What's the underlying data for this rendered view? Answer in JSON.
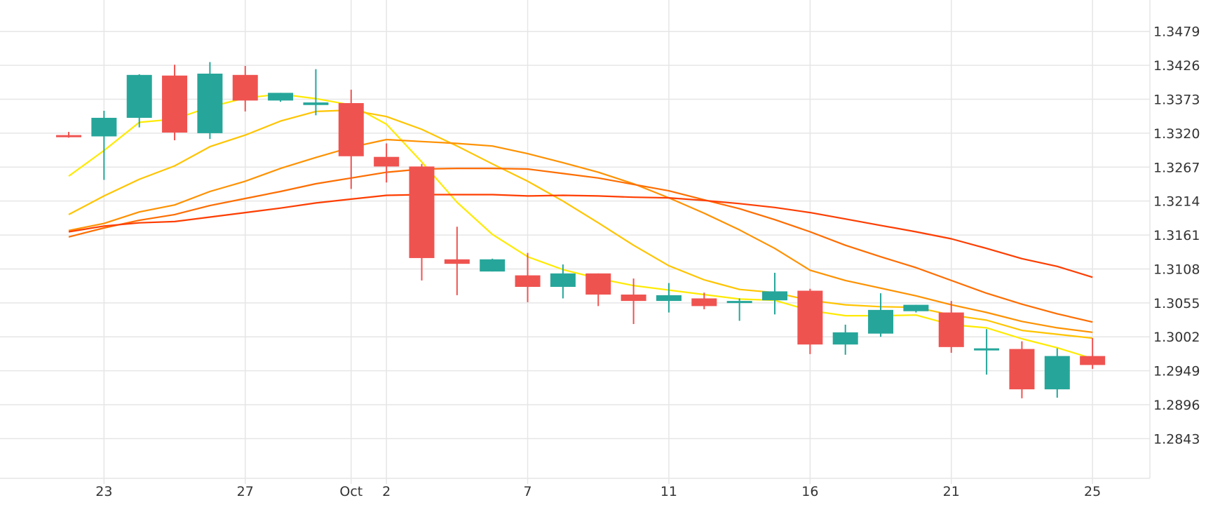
{
  "chart_data": {
    "type": "candlestick",
    "y_ticks": [
      "1.3479",
      "1.3426",
      "1.3373",
      "1.3320",
      "1.3267",
      "1.3214",
      "1.3161",
      "1.3108",
      "1.3055",
      "1.3002",
      "1.2949",
      "1.2896",
      "1.2843"
    ],
    "ylim": [
      1.2781,
      1.3528
    ],
    "x_ticks": [
      {
        "label": "23",
        "index": 1
      },
      {
        "label": "27",
        "index": 5
      },
      {
        "label": "Oct",
        "index": 8
      },
      {
        "label": "2",
        "index": 9
      },
      {
        "label": "7",
        "index": 13
      },
      {
        "label": "11",
        "index": 17
      },
      {
        "label": "16",
        "index": 21
      },
      {
        "label": "21",
        "index": 25
      },
      {
        "label": "25",
        "index": 29
      }
    ],
    "candles": [
      {
        "o": 1.3317,
        "h": 1.3322,
        "l": 1.3313,
        "c": 1.3314
      },
      {
        "o": 1.3315,
        "h": 1.3355,
        "l": 1.3247,
        "c": 1.3344
      },
      {
        "o": 1.3344,
        "h": 1.3412,
        "l": 1.3329,
        "c": 1.3411
      },
      {
        "o": 1.341,
        "h": 1.3427,
        "l": 1.3309,
        "c": 1.3321
      },
      {
        "o": 1.332,
        "h": 1.3431,
        "l": 1.3311,
        "c": 1.3413
      },
      {
        "o": 1.3411,
        "h": 1.3425,
        "l": 1.3354,
        "c": 1.3371
      },
      {
        "o": 1.3371,
        "h": 1.3383,
        "l": 1.3369,
        "c": 1.3383
      },
      {
        "o": 1.3364,
        "h": 1.342,
        "l": 1.3348,
        "c": 1.3368
      },
      {
        "o": 1.3367,
        "h": 1.3388,
        "l": 1.3233,
        "c": 1.3284
      },
      {
        "o": 1.3283,
        "h": 1.3304,
        "l": 1.3243,
        "c": 1.3268
      },
      {
        "o": 1.3268,
        "h": 1.3272,
        "l": 1.309,
        "c": 1.3125
      },
      {
        "o": 1.3123,
        "h": 1.3174,
        "l": 1.3067,
        "c": 1.3116
      },
      {
        "o": 1.3104,
        "h": 1.3124,
        "l": 1.3104,
        "c": 1.3123
      },
      {
        "o": 1.3098,
        "h": 1.3133,
        "l": 1.3056,
        "c": 1.308
      },
      {
        "o": 1.308,
        "h": 1.3115,
        "l": 1.3062,
        "c": 1.3101
      },
      {
        "o": 1.3101,
        "h": 1.3101,
        "l": 1.305,
        "c": 1.3068
      },
      {
        "o": 1.3068,
        "h": 1.3093,
        "l": 1.3022,
        "c": 1.3058
      },
      {
        "o": 1.3058,
        "h": 1.3086,
        "l": 1.304,
        "c": 1.3067
      },
      {
        "o": 1.3062,
        "h": 1.3071,
        "l": 1.3045,
        "c": 1.305
      },
      {
        "o": 1.3058,
        "h": 1.3062,
        "l": 1.3027,
        "c": 1.3058
      },
      {
        "o": 1.3059,
        "h": 1.3102,
        "l": 1.3037,
        "c": 1.3073
      },
      {
        "o": 1.3074,
        "h": 1.3077,
        "l": 1.2975,
        "c": 1.299
      },
      {
        "o": 1.299,
        "h": 1.3021,
        "l": 1.2974,
        "c": 1.3009
      },
      {
        "o": 1.3007,
        "h": 1.307,
        "l": 1.3002,
        "c": 1.3044
      },
      {
        "o": 1.3042,
        "h": 1.3052,
        "l": 1.304,
        "c": 1.3052
      },
      {
        "o": 1.304,
        "h": 1.3058,
        "l": 1.2977,
        "c": 1.2986
      },
      {
        "o": 1.2984,
        "h": 1.3014,
        "l": 1.2943,
        "c": 1.2984
      },
      {
        "o": 1.2983,
        "h": 1.2995,
        "l": 1.2906,
        "c": 1.292
      },
      {
        "o": 1.292,
        "h": 1.2984,
        "l": 1.2907,
        "c": 1.2972
      },
      {
        "o": 1.2972,
        "h": 1.3,
        "l": 1.2952,
        "c": 1.2958
      }
    ],
    "moving_averages": [
      {
        "color": "#ffea00",
        "values": [
          {
            "i": 0,
            "v": 1.3253
          },
          {
            "i": 1,
            "v": 1.3293
          },
          {
            "i": 2,
            "v": 1.3337
          },
          {
            "i": 3,
            "v": 1.3342
          },
          {
            "i": 4,
            "v": 1.3361
          },
          {
            "i": 5,
            "v": 1.3375
          },
          {
            "i": 6,
            "v": 1.3381
          },
          {
            "i": 7,
            "v": 1.3374
          },
          {
            "i": 8,
            "v": 1.3364
          },
          {
            "i": 9,
            "v": 1.3334
          },
          {
            "i": 10,
            "v": 1.3275
          },
          {
            "i": 11,
            "v": 1.3212
          },
          {
            "i": 12,
            "v": 1.3162
          },
          {
            "i": 13,
            "v": 1.3127
          },
          {
            "i": 14,
            "v": 1.3107
          },
          {
            "i": 15,
            "v": 1.3093
          },
          {
            "i": 16,
            "v": 1.3082
          },
          {
            "i": 17,
            "v": 1.3075
          },
          {
            "i": 18,
            "v": 1.3068
          },
          {
            "i": 19,
            "v": 1.3061
          },
          {
            "i": 20,
            "v": 1.3059
          },
          {
            "i": 21,
            "v": 1.3043
          },
          {
            "i": 22,
            "v": 1.3035
          },
          {
            "i": 23,
            "v": 1.3035
          },
          {
            "i": 24,
            "v": 1.3036
          },
          {
            "i": 25,
            "v": 1.3021
          },
          {
            "i": 26,
            "v": 1.3016
          },
          {
            "i": 27,
            "v": 1.2999
          },
          {
            "i": 28,
            "v": 1.2985
          },
          {
            "i": 29,
            "v": 1.2968
          }
        ]
      },
      {
        "color": "#ffc400",
        "values": [
          {
            "i": 0,
            "v": 1.3193
          },
          {
            "i": 1,
            "v": 1.3222
          },
          {
            "i": 2,
            "v": 1.3248
          },
          {
            "i": 3,
            "v": 1.3269
          },
          {
            "i": 4,
            "v": 1.3299
          },
          {
            "i": 5,
            "v": 1.3317
          },
          {
            "i": 6,
            "v": 1.3339
          },
          {
            "i": 7,
            "v": 1.3354
          },
          {
            "i": 8,
            "v": 1.3356
          },
          {
            "i": 9,
            "v": 1.3346
          },
          {
            "i": 10,
            "v": 1.3326
          },
          {
            "i": 11,
            "v": 1.33
          },
          {
            "i": 12,
            "v": 1.3272
          },
          {
            "i": 13,
            "v": 1.3245
          },
          {
            "i": 14,
            "v": 1.3214
          },
          {
            "i": 15,
            "v": 1.318
          },
          {
            "i": 16,
            "v": 1.3145
          },
          {
            "i": 17,
            "v": 1.3113
          },
          {
            "i": 18,
            "v": 1.3091
          },
          {
            "i": 19,
            "v": 1.3076
          },
          {
            "i": 20,
            "v": 1.3071
          },
          {
            "i": 21,
            "v": 1.3059
          },
          {
            "i": 22,
            "v": 1.3052
          },
          {
            "i": 23,
            "v": 1.3049
          },
          {
            "i": 24,
            "v": 1.3048
          },
          {
            "i": 25,
            "v": 1.3036
          },
          {
            "i": 26,
            "v": 1.3028
          },
          {
            "i": 27,
            "v": 1.3012
          },
          {
            "i": 28,
            "v": 1.3006
          },
          {
            "i": 29,
            "v": 1.3
          }
        ]
      },
      {
        "color": "#ff9100",
        "values": [
          {
            "i": 0,
            "v": 1.3168
          },
          {
            "i": 1,
            "v": 1.3179
          },
          {
            "i": 2,
            "v": 1.3197
          },
          {
            "i": 3,
            "v": 1.3208
          },
          {
            "i": 4,
            "v": 1.3229
          },
          {
            "i": 5,
            "v": 1.3245
          },
          {
            "i": 6,
            "v": 1.3265
          },
          {
            "i": 7,
            "v": 1.3282
          },
          {
            "i": 8,
            "v": 1.3298
          },
          {
            "i": 9,
            "v": 1.331
          },
          {
            "i": 10,
            "v": 1.3307
          },
          {
            "i": 11,
            "v": 1.3304
          },
          {
            "i": 12,
            "v": 1.33
          },
          {
            "i": 13,
            "v": 1.3288
          },
          {
            "i": 14,
            "v": 1.3274
          },
          {
            "i": 15,
            "v": 1.3259
          },
          {
            "i": 16,
            "v": 1.3241
          },
          {
            "i": 17,
            "v": 1.3219
          },
          {
            "i": 18,
            "v": 1.3195
          },
          {
            "i": 19,
            "v": 1.3169
          },
          {
            "i": 20,
            "v": 1.314
          },
          {
            "i": 21,
            "v": 1.3106
          },
          {
            "i": 22,
            "v": 1.309
          },
          {
            "i": 23,
            "v": 1.3078
          },
          {
            "i": 24,
            "v": 1.3066
          },
          {
            "i": 25,
            "v": 1.3052
          },
          {
            "i": 26,
            "v": 1.304
          },
          {
            "i": 27,
            "v": 1.3026
          },
          {
            "i": 28,
            "v": 1.3016
          },
          {
            "i": 29,
            "v": 1.3009
          }
        ]
      },
      {
        "color": "#ff6d00",
        "values": [
          {
            "i": 0,
            "v": 1.3158
          },
          {
            "i": 1,
            "v": 1.3172
          },
          {
            "i": 2,
            "v": 1.3184
          },
          {
            "i": 3,
            "v": 1.3193
          },
          {
            "i": 4,
            "v": 1.3207
          },
          {
            "i": 5,
            "v": 1.3218
          },
          {
            "i": 6,
            "v": 1.3229
          },
          {
            "i": 7,
            "v": 1.3241
          },
          {
            "i": 8,
            "v": 1.325
          },
          {
            "i": 9,
            "v": 1.3259
          },
          {
            "i": 10,
            "v": 1.3264
          },
          {
            "i": 11,
            "v": 1.3265
          },
          {
            "i": 12,
            "v": 1.3265
          },
          {
            "i": 13,
            "v": 1.3264
          },
          {
            "i": 14,
            "v": 1.3257
          },
          {
            "i": 15,
            "v": 1.325
          },
          {
            "i": 16,
            "v": 1.324
          },
          {
            "i": 17,
            "v": 1.323
          },
          {
            "i": 18,
            "v": 1.3216
          },
          {
            "i": 19,
            "v": 1.3202
          },
          {
            "i": 20,
            "v": 1.3185
          },
          {
            "i": 21,
            "v": 1.3166
          },
          {
            "i": 22,
            "v": 1.3145
          },
          {
            "i": 23,
            "v": 1.3127
          },
          {
            "i": 24,
            "v": 1.311
          },
          {
            "i": 25,
            "v": 1.309
          },
          {
            "i": 26,
            "v": 1.307
          },
          {
            "i": 27,
            "v": 1.3053
          },
          {
            "i": 28,
            "v": 1.3038
          },
          {
            "i": 29,
            "v": 1.3025
          }
        ]
      },
      {
        "color": "#ff3d00",
        "values": [
          {
            "i": 0,
            "v": 1.3166
          },
          {
            "i": 1,
            "v": 1.3175
          },
          {
            "i": 2,
            "v": 1.318
          },
          {
            "i": 3,
            "v": 1.3182
          },
          {
            "i": 4,
            "v": 1.3189
          },
          {
            "i": 5,
            "v": 1.3196
          },
          {
            "i": 6,
            "v": 1.3203
          },
          {
            "i": 7,
            "v": 1.3211
          },
          {
            "i": 8,
            "v": 1.3217
          },
          {
            "i": 9,
            "v": 1.3223
          },
          {
            "i": 10,
            "v": 1.3224
          },
          {
            "i": 11,
            "v": 1.3224
          },
          {
            "i": 12,
            "v": 1.3224
          },
          {
            "i": 13,
            "v": 1.3222
          },
          {
            "i": 14,
            "v": 1.3223
          },
          {
            "i": 15,
            "v": 1.3222
          },
          {
            "i": 16,
            "v": 1.322
          },
          {
            "i": 17,
            "v": 1.3219
          },
          {
            "i": 18,
            "v": 1.3215
          },
          {
            "i": 19,
            "v": 1.321
          },
          {
            "i": 20,
            "v": 1.3204
          },
          {
            "i": 21,
            "v": 1.3196
          },
          {
            "i": 22,
            "v": 1.3186
          },
          {
            "i": 23,
            "v": 1.3176
          },
          {
            "i": 24,
            "v": 1.3166
          },
          {
            "i": 25,
            "v": 1.3155
          },
          {
            "i": 26,
            "v": 1.314
          },
          {
            "i": 27,
            "v": 1.3124
          },
          {
            "i": 28,
            "v": 1.3112
          },
          {
            "i": 29,
            "v": 1.3095
          }
        ]
      }
    ],
    "colors": {
      "up": "#26a69a",
      "down": "#ef5350",
      "grid": "#e6e6e6",
      "text": "#333333"
    },
    "grid": true
  }
}
